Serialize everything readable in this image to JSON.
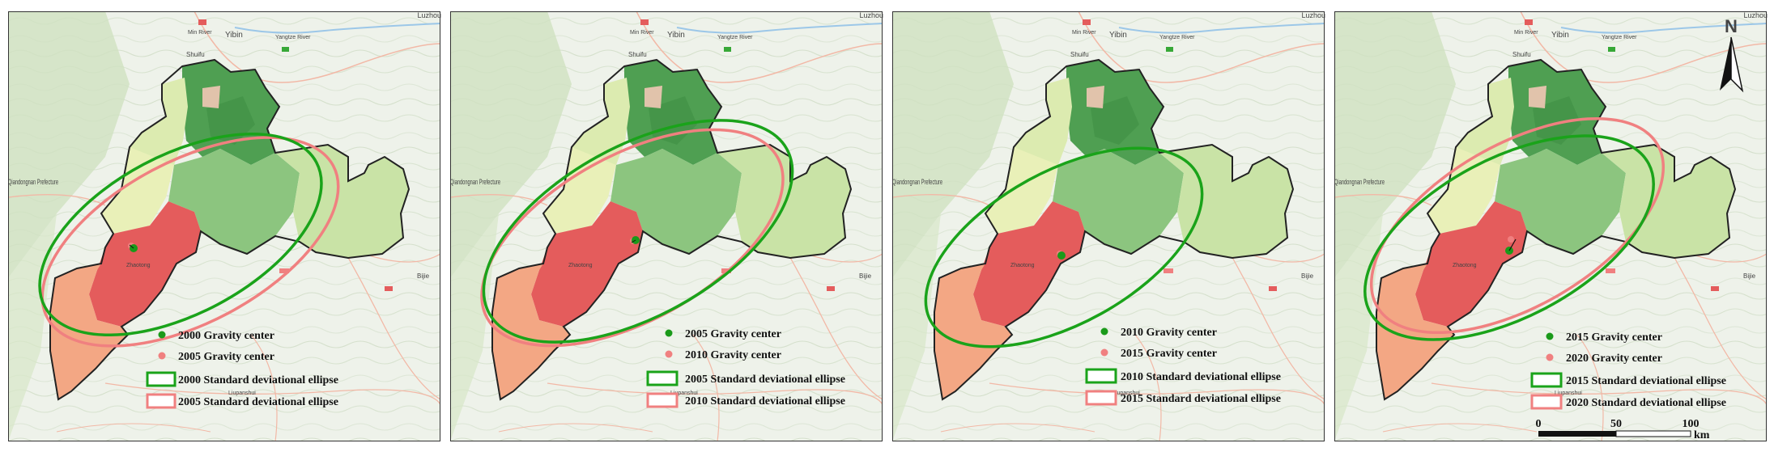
{
  "panels": [
    {
      "labels": {
        "top_right": "Luzhou",
        "city_a": "Yibin",
        "city_b": "Shuifu",
        "river_a": "Min River",
        "river_b": "Yangtze River",
        "prefecture": "Qiandongnan Prefecture",
        "zhaotong": "Zhaotong",
        "bijie": "Bijie",
        "liupanshui": "Liupanshui"
      },
      "legend": {
        "center_a": "2000 Gravity center",
        "center_b": "2005 Gravity center",
        "ellipse_a": "2000 Standard deviational ellipse",
        "ellipse_b": "2005 Standard deviational ellipse"
      }
    },
    {
      "labels": {
        "top_right": "Luzhou",
        "city_a": "Yibin",
        "city_b": "Shuifu",
        "river_a": "Min River",
        "river_b": "Yangtze River",
        "prefecture": "Qiandongnan Prefecture",
        "zhaotong": "Zhaotong",
        "bijie": "Bijie",
        "liupanshui": "Liupanshui"
      },
      "legend": {
        "center_a": "2005 Gravity center",
        "center_b": "2010 Gravity center",
        "ellipse_a": "2005 Standard deviational ellipse",
        "ellipse_b": "2010 Standard deviational ellipse"
      }
    },
    {
      "labels": {
        "top_right": "Luzhou",
        "city_a": "Yibin",
        "city_b": "Shuifu",
        "river_a": "Min River",
        "river_b": "Yangtze River",
        "prefecture": "Qiandongnan Prefecture",
        "zhaotong": "Zhaotong",
        "bijie": "Bijie",
        "liupanshui": "Liupanshui"
      },
      "legend": {
        "center_a": "2010 Gravity center",
        "center_b": "2015 Gravity center",
        "ellipse_a": "2010 Standard deviational ellipse",
        "ellipse_b": "2015 Standard deviational ellipse"
      }
    },
    {
      "labels": {
        "top_right": "Luzhou",
        "city_a": "Yibin",
        "city_b": "Shuifu",
        "river_a": "Min River",
        "river_b": "Yangtze River",
        "prefecture": "Qiandongnan Prefecture",
        "zhaotong": "Zhaotong",
        "bijie": "Bijie",
        "liupanshui": "Liupanshui"
      },
      "legend": {
        "center_a": "2015 Gravity center",
        "center_b": "2020 Gravity center",
        "ellipse_a": "2015 Standard deviational ellipse",
        "ellipse_b": "2020 Standard deviational ellipse"
      }
    }
  ],
  "north_arrow": {
    "label": "N"
  },
  "scale_bar": {
    "ticks": [
      "0",
      "50",
      "100"
    ],
    "unit": "km"
  },
  "colors": {
    "ellipse_a": "#1aa31a",
    "ellipse_b": "#f08080",
    "center_a": "#1a9a1a",
    "center_b": "#f08080",
    "dark_green": "#4f9f52",
    "mid_green": "#8cc57f",
    "light_green": "#c9e3a6",
    "pale_yellow": "#e9f0b8",
    "red": "#e45c5c",
    "salmon": "#f3a784"
  }
}
